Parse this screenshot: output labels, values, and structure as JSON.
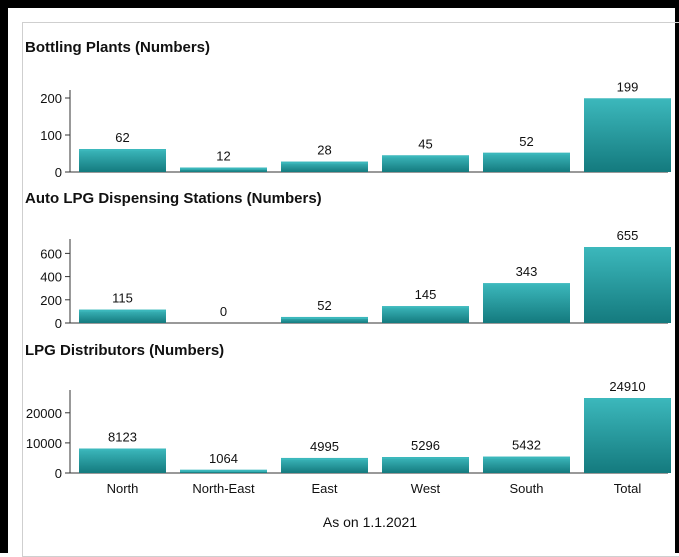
{
  "colors": {
    "bar": "#1e9ea3",
    "bar_top": "#3cb8bc",
    "bar_shadow": "#147a7e",
    "axis": "#333333"
  },
  "chart_data": [
    {
      "type": "bar",
      "title": "Bottling Plants (Numbers)",
      "categories": [
        "North",
        "North-East",
        "East",
        "West",
        "South",
        "Total"
      ],
      "values": [
        62,
        12,
        28,
        45,
        52,
        199
      ],
      "yticks": [
        0,
        100,
        200
      ],
      "ylim": [
        0,
        200
      ],
      "grid": false
    },
    {
      "type": "bar",
      "title": "Auto LPG Dispensing Stations (Numbers)",
      "categories": [
        "North",
        "North-East",
        "East",
        "West",
        "South",
        "Total"
      ],
      "values": [
        115,
        0,
        52,
        145,
        343,
        655
      ],
      "yticks": [
        0,
        200,
        400,
        600
      ],
      "ylim": [
        0,
        655
      ],
      "grid": false
    },
    {
      "type": "bar",
      "title": "LPG Distributors (Numbers)",
      "categories": [
        "North",
        "North-East",
        "East",
        "West",
        "South",
        "Total"
      ],
      "values": [
        8123,
        1064,
        4995,
        5296,
        5432,
        24910
      ],
      "yticks": [
        0,
        10000,
        20000
      ],
      "ylim": [
        0,
        24910
      ],
      "grid": false
    }
  ],
  "footer": "As on 1.1.2021"
}
